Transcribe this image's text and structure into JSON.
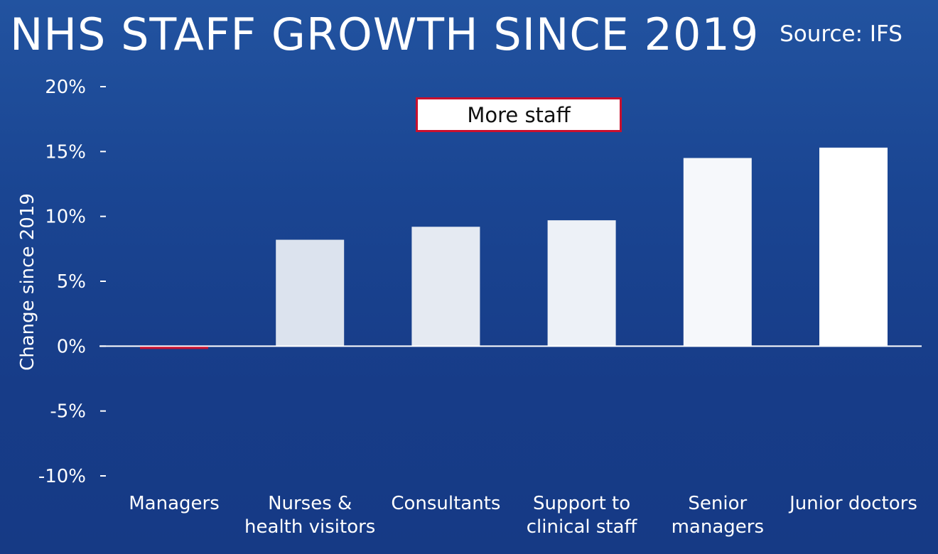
{
  "header": {
    "title": "NHS STAFF GROWTH SINCE 2019",
    "source": "Source: IFS"
  },
  "colors": {
    "positive_light": "#d3dcea",
    "positive_bright": "#ffffff",
    "negative": "#c8102e",
    "axis": "#ffffff",
    "annotation_border": "#c8102e"
  },
  "chart_data": {
    "type": "bar",
    "title": "NHS STAFF GROWTH SINCE 2019",
    "xlabel": "",
    "ylabel": "Change since 2019",
    "ylim": [
      -10,
      20
    ],
    "yticks": [
      20,
      15,
      10,
      5,
      0,
      -5,
      -10
    ],
    "ytick_labels": [
      "20%",
      "15%",
      "10%",
      "5%",
      "0%",
      "-5%",
      "-10%"
    ],
    "categories": [
      [
        "Managers"
      ],
      [
        "Nurses &",
        "health visitors"
      ],
      [
        "Consultants"
      ],
      [
        "Support to",
        "clinical staff"
      ],
      [
        "Senior",
        "managers"
      ],
      [
        "Junior doctors"
      ]
    ],
    "values": [
      -0.2,
      8.2,
      9.2,
      9.7,
      14.5,
      15.3
    ],
    "annotation": "More staff",
    "grid": false,
    "legend": "none"
  }
}
